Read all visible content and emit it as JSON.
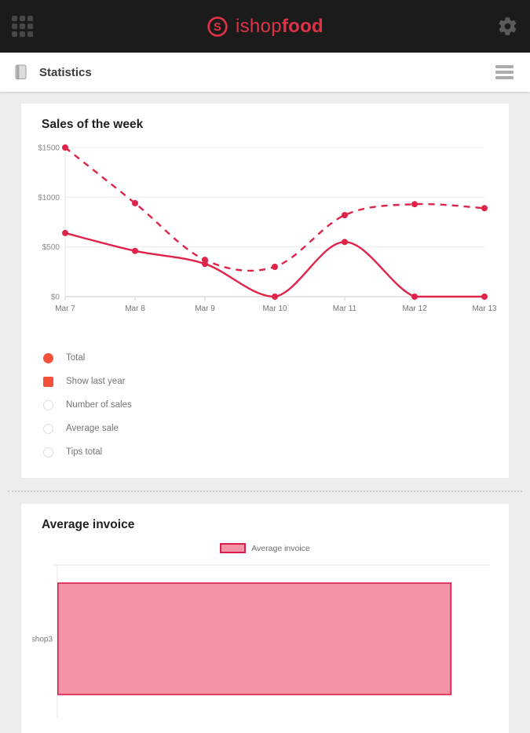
{
  "header": {
    "logo_prefix": "ishop",
    "logo_suffix": "food",
    "brand_color": "#e03246"
  },
  "toolbar": {
    "title": "Statistics"
  },
  "icons": {
    "top_left": "apps-grid-icon",
    "top_right": "gear-icon",
    "toolbar_left": "ledger-icon",
    "toolbar_right": "menu-icon"
  },
  "colors": {
    "header_bg": "#1b1b1b",
    "accent_control": "#f4503a",
    "chart_line": "#e02349",
    "bar_fill": "#f492a6",
    "bar_border": "#dc1e4c",
    "page_bg": "#ededed"
  },
  "chart_data": [
    {
      "type": "line",
      "title": "Sales of the week",
      "categories": [
        "Mar 7",
        "Mar 8",
        "Mar 9",
        "Mar 10",
        "Mar 11",
        "Mar 12",
        "Mar 13"
      ],
      "series": [
        {
          "name": "Last year",
          "style": "dashed",
          "values": [
            1500,
            940,
            370,
            300,
            820,
            930,
            890
          ]
        },
        {
          "name": "Total",
          "style": "solid",
          "values": [
            640,
            460,
            330,
            0,
            550,
            0,
            0
          ]
        }
      ],
      "ylim": [
        0,
        1500
      ],
      "ytick_values": [
        0,
        500,
        1000,
        1500
      ],
      "ytick_labels": [
        "$0",
        "$500",
        "$1000",
        "$1500"
      ],
      "line_color": "#e02349",
      "grid": true,
      "legend_position": "below-as-controls"
    },
    {
      "type": "bar",
      "orientation": "horizontal",
      "title": "Average invoice",
      "legend": "Average invoice",
      "categories": [
        "ishop3"
      ],
      "values": [
        91
      ],
      "xlim": [
        0,
        100
      ],
      "axis_labels_visible": false,
      "bar_fill": "#f492a6",
      "bar_border": "#dc1e4c",
      "legend_position": "top-center"
    }
  ],
  "sales_controls": [
    {
      "label": "Total",
      "control": "radio",
      "state": "selected"
    },
    {
      "label": "Show last year",
      "control": "checkbox",
      "state": "checked"
    },
    {
      "label": "Number of sales",
      "control": "radio",
      "state": "unselected"
    },
    {
      "label": "Average sale",
      "control": "radio",
      "state": "unselected"
    },
    {
      "label": "Tips total",
      "control": "radio",
      "state": "unselected"
    }
  ]
}
